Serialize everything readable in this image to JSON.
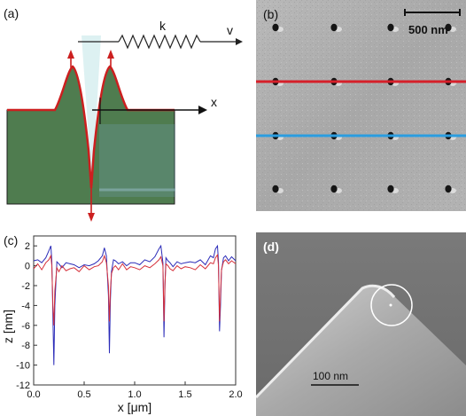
{
  "panel_a": {
    "label": "(a)",
    "spring_label": "k",
    "velocity_label": "v",
    "axis_label": "x",
    "colors": {
      "ground": "#4f7c4f",
      "profile": "#cc1f1f",
      "arrow": "#cc1f1f",
      "tip": "#d7eef0"
    }
  },
  "panel_b": {
    "label": "(b)",
    "scalebar_label": "500 nm",
    "colors": {
      "line_top": "#d6202a",
      "line_bottom": "#2a9de0"
    }
  },
  "panel_c": {
    "label": "(c)",
    "chart_data": {
      "type": "line",
      "xlabel": "x [μm]",
      "ylabel": "z [nm]",
      "xlim": [
        0,
        2.0
      ],
      "ylim": [
        -12,
        3
      ],
      "xticks": [
        "0.0",
        "0.5",
        "1.0",
        "1.5",
        "2.0"
      ],
      "yticks": [
        "2",
        "0",
        "-2",
        "-4",
        "-6",
        "-8",
        "-10",
        "-12"
      ],
      "series": [
        {
          "color": "#2b2bb8",
          "x": [
            0.0,
            0.04,
            0.08,
            0.12,
            0.15,
            0.17,
            0.18,
            0.19,
            0.2,
            0.21,
            0.23,
            0.25,
            0.28,
            0.32,
            0.36,
            0.4,
            0.45,
            0.5,
            0.55,
            0.6,
            0.64,
            0.68,
            0.7,
            0.72,
            0.74,
            0.75,
            0.76,
            0.77,
            0.79,
            0.81,
            0.84,
            0.88,
            0.92,
            0.96,
            1.0,
            1.05,
            1.1,
            1.15,
            1.2,
            1.24,
            1.26,
            1.28,
            1.29,
            1.3,
            1.31,
            1.33,
            1.35,
            1.38,
            1.42,
            1.46,
            1.5,
            1.55,
            1.6,
            1.65,
            1.7,
            1.75,
            1.78,
            1.8,
            1.82,
            1.83,
            1.84,
            1.85,
            1.86,
            1.88,
            1.9,
            1.93,
            1.96,
            2.0
          ],
          "y": [
            0.5,
            0.6,
            0.3,
            0.8,
            1.5,
            2.0,
            0.5,
            -5.0,
            -10.0,
            -4.0,
            0.4,
            0.2,
            -0.2,
            0.3,
            0.2,
            0.1,
            -0.2,
            0.1,
            0.0,
            0.2,
            0.5,
            1.0,
            1.8,
            1.0,
            -3.0,
            -8.8,
            -3.5,
            -0.6,
            0.6,
            0.5,
            0.2,
            0.4,
            0.0,
            0.3,
            0.3,
            0.1,
            0.6,
            0.4,
            0.9,
            1.7,
            2.0,
            0.3,
            -7.2,
            -2.0,
            0.8,
            0.5,
            0.3,
            -0.1,
            0.4,
            0.2,
            0.3,
            0.4,
            0.3,
            0.6,
            0.1,
            1.0,
            0.8,
            1.7,
            2.0,
            0.4,
            -6.6,
            -4.0,
            -0.5,
            0.8,
            1.0,
            0.5,
            0.9,
            0.5
          ]
        },
        {
          "color": "#d6303a",
          "x": [
            0.0,
            0.04,
            0.08,
            0.12,
            0.15,
            0.17,
            0.18,
            0.19,
            0.2,
            0.21,
            0.23,
            0.25,
            0.28,
            0.32,
            0.36,
            0.4,
            0.45,
            0.5,
            0.55,
            0.6,
            0.64,
            0.68,
            0.7,
            0.72,
            0.74,
            0.75,
            0.76,
            0.77,
            0.79,
            0.81,
            0.84,
            0.88,
            0.92,
            0.96,
            1.0,
            1.05,
            1.1,
            1.15,
            1.2,
            1.24,
            1.26,
            1.28,
            1.29,
            1.3,
            1.31,
            1.33,
            1.35,
            1.38,
            1.42,
            1.46,
            1.5,
            1.55,
            1.6,
            1.65,
            1.7,
            1.75,
            1.78,
            1.8,
            1.82,
            1.83,
            1.84,
            1.85,
            1.86,
            1.88,
            1.9,
            1.93,
            1.96,
            2.0
          ],
          "y": [
            -0.3,
            0.2,
            -0.4,
            0.3,
            0.6,
            1.0,
            0.0,
            -4.0,
            -6.0,
            -2.5,
            -0.2,
            -0.6,
            0.0,
            -0.5,
            -0.3,
            -0.2,
            -0.6,
            0.0,
            -0.4,
            -0.1,
            0.0,
            0.4,
            1.0,
            0.3,
            -2.0,
            -5.6,
            -2.5,
            -0.8,
            -0.2,
            0.0,
            -0.4,
            0.2,
            -0.4,
            -0.1,
            -0.2,
            -0.4,
            0.0,
            -0.2,
            0.2,
            0.6,
            0.9,
            0.0,
            -5.6,
            -1.8,
            0.2,
            0.0,
            -0.3,
            -0.5,
            0.0,
            -0.3,
            -0.1,
            -0.2,
            -0.4,
            0.1,
            -0.3,
            0.3,
            0.2,
            0.8,
            1.1,
            0.0,
            -5.6,
            -3.0,
            -0.4,
            0.4,
            0.6,
            0.2,
            0.5,
            0.2
          ]
        }
      ]
    }
  },
  "panel_d": {
    "label": "(d)",
    "scalebar_label": "100 nm"
  }
}
